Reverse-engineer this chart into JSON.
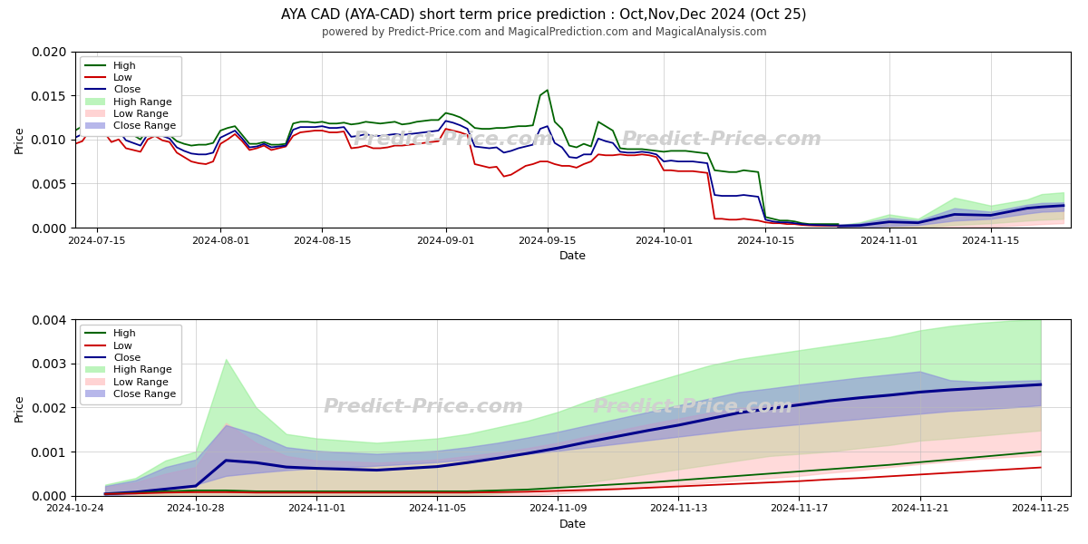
{
  "title": "AYA CAD (AYA-CAD) short term price prediction : Oct,Nov,Dec 2024 (Oct 25)",
  "subtitle": "powered by Predict-Price.com and MagicalPrediction.com and MagicalAnalysis.com",
  "xlabel": "Date",
  "ylabel": "Price",
  "watermark": "Predict-Price.com",
  "top_plot": {
    "high_dates": [
      "2024-07-12",
      "2024-07-13",
      "2024-07-14",
      "2024-07-15",
      "2024-07-16",
      "2024-07-17",
      "2024-07-18",
      "2024-07-19",
      "2024-07-20",
      "2024-07-21",
      "2024-07-22",
      "2024-07-23",
      "2024-07-24",
      "2024-07-25",
      "2024-07-26",
      "2024-07-27",
      "2024-07-28",
      "2024-07-29",
      "2024-07-30",
      "2024-07-31",
      "2024-08-01",
      "2024-08-02",
      "2024-08-03",
      "2024-08-04",
      "2024-08-05",
      "2024-08-06",
      "2024-08-07",
      "2024-08-08",
      "2024-08-09",
      "2024-08-10",
      "2024-08-11",
      "2024-08-12",
      "2024-08-13",
      "2024-08-14",
      "2024-08-15",
      "2024-08-16",
      "2024-08-17",
      "2024-08-18",
      "2024-08-19",
      "2024-08-20",
      "2024-08-21",
      "2024-08-22",
      "2024-08-23",
      "2024-08-24",
      "2024-08-25",
      "2024-08-26",
      "2024-08-27",
      "2024-08-28",
      "2024-08-29",
      "2024-08-30",
      "2024-08-31",
      "2024-09-01",
      "2024-09-02",
      "2024-09-03",
      "2024-09-04",
      "2024-09-05",
      "2024-09-06",
      "2024-09-07",
      "2024-09-08",
      "2024-09-09",
      "2024-09-10",
      "2024-09-11",
      "2024-09-12",
      "2024-09-13",
      "2024-09-14",
      "2024-09-15",
      "2024-09-16",
      "2024-09-17",
      "2024-09-18",
      "2024-09-19",
      "2024-09-20",
      "2024-09-21",
      "2024-09-22",
      "2024-09-23",
      "2024-09-24",
      "2024-09-25",
      "2024-09-26",
      "2024-09-27",
      "2024-09-28",
      "2024-09-29",
      "2024-09-30",
      "2024-10-01",
      "2024-10-02",
      "2024-10-03",
      "2024-10-04",
      "2024-10-05",
      "2024-10-06",
      "2024-10-07",
      "2024-10-08",
      "2024-10-09",
      "2024-10-10",
      "2024-10-11",
      "2024-10-12",
      "2024-10-13",
      "2024-10-14",
      "2024-10-15",
      "2024-10-16",
      "2024-10-17",
      "2024-10-18",
      "2024-10-19",
      "2024-10-20",
      "2024-10-21",
      "2024-10-22",
      "2024-10-23",
      "2024-10-24",
      "2024-10-25"
    ],
    "high_vals": [
      0.011,
      0.0115,
      0.0138,
      0.014,
      0.0125,
      0.0115,
      0.012,
      0.0108,
      0.0105,
      0.01,
      0.0112,
      0.0115,
      0.011,
      0.0105,
      0.0098,
      0.0095,
      0.0093,
      0.0094,
      0.0094,
      0.0096,
      0.011,
      0.0113,
      0.0115,
      0.0105,
      0.0095,
      0.0095,
      0.0097,
      0.0094,
      0.0094,
      0.0095,
      0.0118,
      0.012,
      0.012,
      0.0119,
      0.012,
      0.0118,
      0.0118,
      0.0119,
      0.0117,
      0.0118,
      0.012,
      0.0119,
      0.0118,
      0.0119,
      0.012,
      0.0117,
      0.0118,
      0.012,
      0.0121,
      0.0122,
      0.0122,
      0.013,
      0.0128,
      0.0125,
      0.012,
      0.0113,
      0.0112,
      0.0112,
      0.0113,
      0.0113,
      0.0114,
      0.0115,
      0.0115,
      0.0116,
      0.015,
      0.0156,
      0.012,
      0.0112,
      0.0093,
      0.0091,
      0.0095,
      0.0092,
      0.012,
      0.0115,
      0.011,
      0.009,
      0.0089,
      0.0089,
      0.0089,
      0.0088,
      0.0087,
      0.0086,
      0.0087,
      0.0087,
      0.0087,
      0.0086,
      0.0085,
      0.0084,
      0.0065,
      0.0064,
      0.0063,
      0.0063,
      0.0065,
      0.0064,
      0.0063,
      0.0012,
      0.001,
      0.0008,
      0.0008,
      0.0007,
      0.0005,
      0.0004,
      0.0004,
      0.0004,
      0.0004,
      0.0004
    ],
    "low_vals": [
      0.0095,
      0.0098,
      0.011,
      0.0112,
      0.0108,
      0.0097,
      0.01,
      0.009,
      0.0088,
      0.0086,
      0.01,
      0.0104,
      0.0099,
      0.0097,
      0.0085,
      0.008,
      0.0075,
      0.0073,
      0.0072,
      0.0075,
      0.0095,
      0.01,
      0.0106,
      0.0098,
      0.0088,
      0.009,
      0.0093,
      0.0088,
      0.009,
      0.0092,
      0.0104,
      0.0108,
      0.0109,
      0.011,
      0.011,
      0.0108,
      0.0108,
      0.0109,
      0.009,
      0.0091,
      0.0093,
      0.009,
      0.009,
      0.0091,
      0.0093,
      0.0093,
      0.0094,
      0.0095,
      0.0096,
      0.0097,
      0.0098,
      0.0112,
      0.011,
      0.0108,
      0.0105,
      0.0072,
      0.007,
      0.0068,
      0.0069,
      0.0058,
      0.006,
      0.0065,
      0.007,
      0.0072,
      0.0075,
      0.0075,
      0.0072,
      0.007,
      0.007,
      0.0068,
      0.0072,
      0.0075,
      0.0083,
      0.0082,
      0.0082,
      0.0083,
      0.0082,
      0.0082,
      0.0083,
      0.0082,
      0.008,
      0.0065,
      0.0065,
      0.0064,
      0.0064,
      0.0064,
      0.0063,
      0.0062,
      0.001,
      0.001,
      0.0009,
      0.0009,
      0.001,
      0.0009,
      0.0008,
      0.0006,
      0.0005,
      0.0005,
      0.0004,
      0.0004,
      0.0003,
      0.00025,
      0.00022,
      0.00021,
      0.0002,
      0.0002
    ],
    "close_vals": [
      0.0102,
      0.0106,
      0.0124,
      0.0126,
      0.0116,
      0.0106,
      0.011,
      0.0099,
      0.0096,
      0.0093,
      0.0106,
      0.0109,
      0.0104,
      0.0101,
      0.0091,
      0.0087,
      0.0084,
      0.0083,
      0.0083,
      0.0085,
      0.0102,
      0.0106,
      0.011,
      0.0101,
      0.0091,
      0.0092,
      0.0095,
      0.0091,
      0.0092,
      0.0093,
      0.0111,
      0.0114,
      0.0114,
      0.0114,
      0.0115,
      0.0113,
      0.0113,
      0.0114,
      0.0103,
      0.0104,
      0.0106,
      0.0104,
      0.0104,
      0.0105,
      0.0106,
      0.0105,
      0.0106,
      0.0107,
      0.0108,
      0.0109,
      0.011,
      0.0121,
      0.0119,
      0.0116,
      0.0112,
      0.0092,
      0.0091,
      0.009,
      0.0091,
      0.0085,
      0.0087,
      0.009,
      0.0092,
      0.0094,
      0.0112,
      0.0115,
      0.0096,
      0.0091,
      0.008,
      0.0079,
      0.0083,
      0.0083,
      0.0101,
      0.0098,
      0.0096,
      0.0086,
      0.0085,
      0.0085,
      0.0086,
      0.0085,
      0.0083,
      0.0075,
      0.0076,
      0.0075,
      0.0075,
      0.0075,
      0.0074,
      0.0073,
      0.0037,
      0.0036,
      0.0036,
      0.0036,
      0.0037,
      0.0036,
      0.0035,
      0.0009,
      0.0007,
      0.0006,
      0.0006,
      0.0005,
      0.0004,
      0.00033,
      0.0003,
      0.00028,
      0.00025,
      0.00025
    ],
    "pred_start": "2024-10-25",
    "pred_dates": [
      "2024-10-25",
      "2024-10-28",
      "2024-11-01",
      "2024-11-05",
      "2024-11-10",
      "2024-11-15",
      "2024-11-20",
      "2024-11-22",
      "2024-11-25"
    ],
    "high_range_upper": [
      0.00025,
      0.0006,
      0.0015,
      0.001,
      0.0034,
      0.0025,
      0.0032,
      0.0038,
      0.004
    ],
    "high_range_lower": [
      0.0,
      0.0,
      0.0,
      0.0,
      0.0003,
      0.0005,
      0.0008,
      0.0009,
      0.001
    ],
    "low_range_upper": [
      0.0002,
      0.0004,
      0.0008,
      0.0006,
      0.0016,
      0.0015,
      0.002,
      0.0022,
      0.0023
    ],
    "low_range_lower": [
      0.0,
      0.0,
      0.0,
      0.0,
      0.0,
      0.0001,
      0.0003,
      0.0004,
      0.0005
    ],
    "close_range_upper": [
      0.00022,
      0.0005,
      0.0011,
      0.0008,
      0.0022,
      0.0018,
      0.0026,
      0.0028,
      0.00285
    ],
    "close_range_lower": [
      0.0,
      0.0,
      0.0002,
      0.0003,
      0.0008,
      0.001,
      0.0016,
      0.0018,
      0.0019
    ],
    "close_pred": [
      0.0002,
      0.00025,
      0.00065,
      0.00055,
      0.0015,
      0.0014,
      0.0022,
      0.00235,
      0.0025
    ],
    "ylim": [
      0.0,
      0.02
    ],
    "yticks": [
      0.0,
      0.005,
      0.01,
      0.015,
      0.02
    ]
  },
  "bottom_plot": {
    "dates": [
      "2024-10-25",
      "2024-10-26",
      "2024-10-27",
      "2024-10-28",
      "2024-10-29",
      "2024-10-30",
      "2024-10-31",
      "2024-11-01",
      "2024-11-02",
      "2024-11-03",
      "2024-11-04",
      "2024-11-05",
      "2024-11-06",
      "2024-11-07",
      "2024-11-08",
      "2024-11-09",
      "2024-11-10",
      "2024-11-11",
      "2024-11-12",
      "2024-11-13",
      "2024-11-14",
      "2024-11-15",
      "2024-11-16",
      "2024-11-17",
      "2024-11-18",
      "2024-11-19",
      "2024-11-20",
      "2024-11-21",
      "2024-11-22",
      "2024-11-23",
      "2024-11-24",
      "2024-11-25"
    ],
    "high_range_upper": [
      0.00025,
      0.0004,
      0.0008,
      0.001,
      0.0031,
      0.002,
      0.0014,
      0.0013,
      0.00125,
      0.0012,
      0.00125,
      0.0013,
      0.0014,
      0.00155,
      0.0017,
      0.0019,
      0.00215,
      0.00235,
      0.00255,
      0.00275,
      0.00295,
      0.0031,
      0.0032,
      0.0033,
      0.0034,
      0.0035,
      0.0036,
      0.00375,
      0.00385,
      0.00392,
      0.00397,
      0.004
    ],
    "high_range_lower": [
      0.0,
      0.0,
      0.0,
      0.0,
      0.0,
      0.0,
      0.0,
      0.0,
      0.0,
      0.0,
      0.0,
      0.0,
      0.0,
      5e-05,
      0.0001,
      0.0002,
      0.0003,
      0.0004,
      0.0005,
      0.0006,
      0.0007,
      0.0008,
      0.0009,
      0.00095,
      0.001,
      0.00108,
      0.00115,
      0.00125,
      0.0013,
      0.00136,
      0.00142,
      0.00148
    ],
    "low_range_upper": [
      0.0002,
      0.0003,
      0.0005,
      0.00065,
      0.00165,
      0.0012,
      0.0009,
      0.0008,
      0.00078,
      0.00075,
      0.00078,
      0.00082,
      0.0009,
      0.00098,
      0.00108,
      0.0012,
      0.00135,
      0.00148,
      0.00162,
      0.00175,
      0.00188,
      0.00198,
      0.00205,
      0.00212,
      0.00218,
      0.00225,
      0.0023,
      0.00238,
      0.00244,
      0.00248,
      0.00251,
      0.00255
    ],
    "low_range_lower": [
      0.0,
      0.0,
      0.0,
      0.0,
      0.0,
      0.0,
      0.0,
      0.0,
      0.0,
      0.0,
      0.0,
      0.0,
      0.0,
      0.0,
      0.0,
      5e-05,
      0.0001,
      0.00015,
      0.0002,
      0.00025,
      0.0003,
      0.00035,
      0.0004,
      0.00045,
      0.00052,
      0.00058,
      0.00065,
      0.00072,
      0.00078,
      0.00084,
      0.00088,
      0.00092
    ],
    "close_range_upper": [
      0.00022,
      0.00035,
      0.00065,
      0.00082,
      0.0016,
      0.0014,
      0.0011,
      0.00102,
      0.00098,
      0.00095,
      0.00098,
      0.00102,
      0.0011,
      0.0012,
      0.00132,
      0.00145,
      0.0016,
      0.00175,
      0.0019,
      0.00205,
      0.0022,
      0.00235,
      0.00243,
      0.00252,
      0.0026,
      0.00268,
      0.00275,
      0.00282,
      0.00262,
      0.00258,
      0.0026,
      0.00262
    ],
    "close_range_lower": [
      0.0,
      5e-05,
      0.00015,
      0.00025,
      0.00045,
      0.00052,
      0.00058,
      0.00062,
      0.00065,
      0.00068,
      0.00072,
      0.00076,
      0.00082,
      0.00088,
      0.00095,
      0.00102,
      0.0011,
      0.00118,
      0.00126,
      0.00134,
      0.00142,
      0.0015,
      0.00156,
      0.00162,
      0.00168,
      0.00174,
      0.0018,
      0.00186,
      0.00192,
      0.00196,
      0.002,
      0.00205
    ],
    "close_line": [
      4e-05,
      8e-05,
      0.00015,
      0.00022,
      0.0008,
      0.00075,
      0.00065,
      0.00062,
      0.0006,
      0.00058,
      0.00062,
      0.00066,
      0.00075,
      0.00085,
      0.00096,
      0.00108,
      0.00122,
      0.00135,
      0.00148,
      0.0016,
      0.00174,
      0.00188,
      0.00197,
      0.00206,
      0.00215,
      0.00222,
      0.00228,
      0.00235,
      0.0024,
      0.00244,
      0.00248,
      0.00252
    ],
    "high_line_vals": [
      4e-05,
      6e-05,
      0.0001,
      0.00012,
      0.00012,
      0.0001,
      0.0001,
      0.0001,
      0.0001,
      0.0001,
      0.0001,
      0.0001,
      0.0001,
      0.00012,
      0.00014,
      0.00018,
      0.00022,
      0.00026,
      0.0003,
      0.00035,
      0.0004,
      0.00045,
      0.0005,
      0.00055,
      0.0006,
      0.00065,
      0.0007,
      0.00076,
      0.00082,
      0.00088,
      0.00094,
      0.001
    ],
    "low_line_vals": [
      4e-05,
      5e-05,
      7e-05,
      8e-05,
      8e-05,
      7e-05,
      7e-05,
      7e-05,
      7e-05,
      7e-05,
      7e-05,
      7e-05,
      7e-05,
      8e-05,
      9e-05,
      0.00011,
      0.00013,
      0.00015,
      0.00018,
      0.00021,
      0.00024,
      0.00027,
      0.0003,
      0.00033,
      0.00037,
      0.0004,
      0.00044,
      0.00048,
      0.00052,
      0.00056,
      0.0006,
      0.00064
    ],
    "ylim": [
      0.0,
      0.004
    ],
    "yticks": [
      0.0,
      0.001,
      0.002,
      0.003,
      0.004
    ]
  },
  "colors": {
    "high_line": "#006400",
    "low_line": "#cc0000",
    "close_line": "#00008B",
    "high_range": "#90ee90",
    "low_range": "#ffb6b6",
    "close_range": "#8888dd",
    "background": "#ffffff",
    "grid": "#bbbbbb",
    "watermark": "#d0d0d0"
  }
}
